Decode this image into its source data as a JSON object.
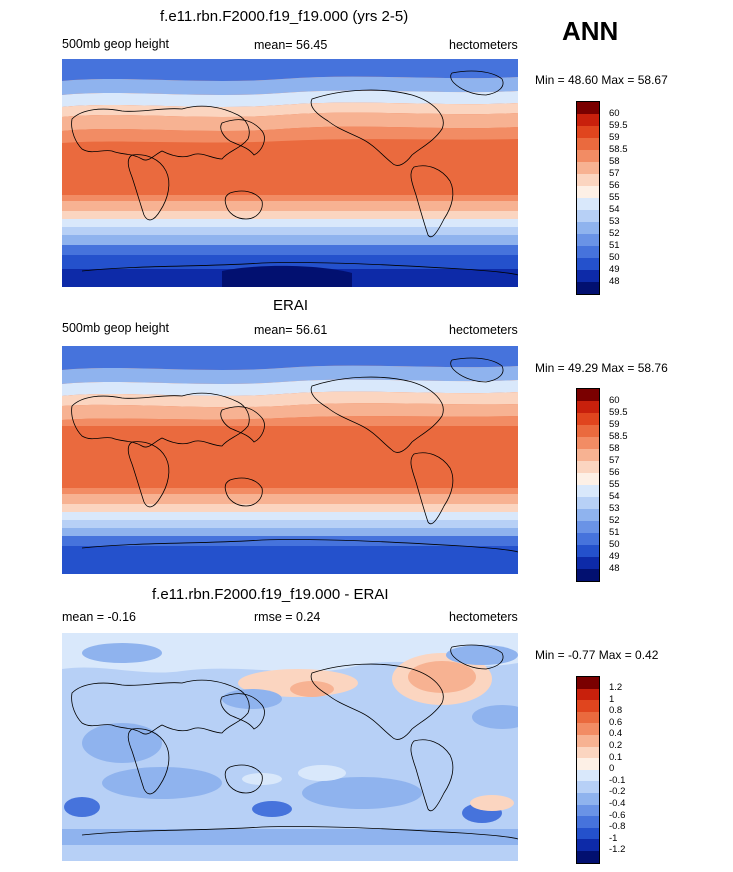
{
  "season": "ANN",
  "panels": [
    {
      "title": "f.e11.rbn.F2000.f19_f19.000 (yrs 2-5)",
      "left_label": "500mb geop height",
      "center_label": "mean=  56.45",
      "right_label": "hectometers",
      "minmax": "Min =  48.60 Max =  58.67",
      "colorbar_labels": [
        "60",
        "59.5",
        "59",
        "58.5",
        "58",
        "57",
        "56",
        "55",
        "54",
        "53",
        "52",
        "51",
        "50",
        "49",
        "48"
      ]
    },
    {
      "title": "ERAI",
      "left_label": "500mb geop height",
      "center_label": "mean=  56.61",
      "right_label": "hectometers",
      "minmax": "Min =  49.29 Max =  58.76",
      "colorbar_labels": [
        "60",
        "59.5",
        "59",
        "58.5",
        "58",
        "57",
        "56",
        "55",
        "54",
        "53",
        "52",
        "51",
        "50",
        "49",
        "48"
      ]
    },
    {
      "title": "f.e11.rbn.F2000.f19_f19.000 - ERAI",
      "left_label": "mean =  -0.16",
      "center_label": "rmse =   0.24",
      "right_label": "hectometers",
      "minmax": "Min =  -0.77 Max =   0.42",
      "colorbar_labels": [
        "1.2",
        "1",
        "0.8",
        "0.6",
        "0.4",
        "0.2",
        "0.1",
        "0",
        "-0.1",
        "-0.2",
        "-0.4",
        "-0.6",
        "-0.8",
        "-1",
        "-1.2"
      ]
    }
  ],
  "colors": {
    "colorbar": [
      "#7a0000",
      "#c8200c",
      "#e0451e",
      "#ea6a3e",
      "#f28c64",
      "#f7b292",
      "#fbd5c0",
      "#fdf0e6",
      "#d9e8fb",
      "#b7d0f6",
      "#8fb3ee",
      "#6a93e6",
      "#4673dc",
      "#2451cc",
      "#0d2aa8",
      "#021070"
    ]
  }
}
